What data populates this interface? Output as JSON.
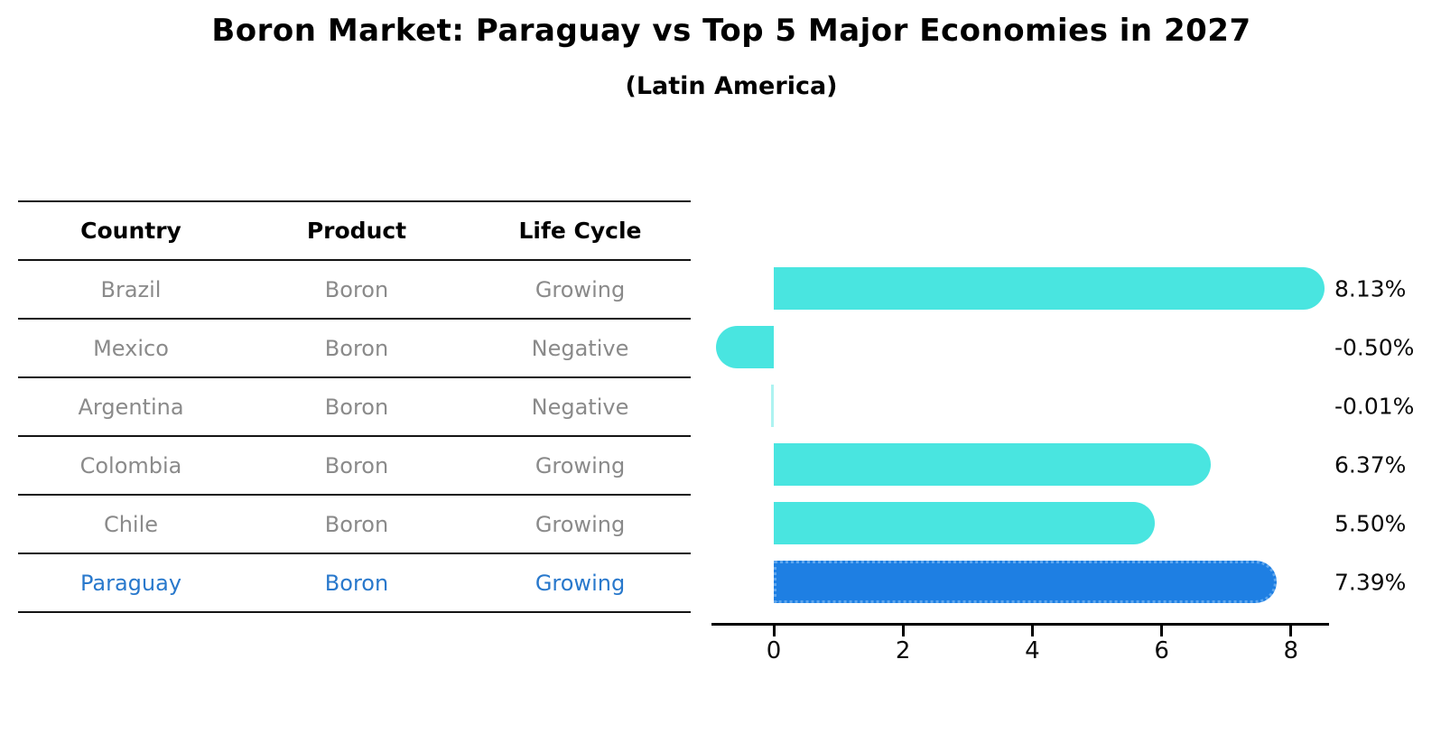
{
  "title": "Boron Market: Paraguay vs Top 5 Major Economies in 2027",
  "subtitle": "(Latin America)",
  "table": {
    "headers": [
      "Country",
      "Product",
      "Life Cycle"
    ],
    "rows": [
      {
        "country": "Brazil",
        "product": "Boron",
        "life_cycle": "Growing",
        "highlight": false
      },
      {
        "country": "Mexico",
        "product": "Boron",
        "life_cycle": "Negative",
        "highlight": false
      },
      {
        "country": "Argentina",
        "product": "Boron",
        "life_cycle": "Negative",
        "highlight": false
      },
      {
        "country": "Colombia",
        "product": "Boron",
        "life_cycle": "Growing",
        "highlight": false
      },
      {
        "country": "Chile",
        "product": "Boron",
        "life_cycle": "Growing",
        "highlight": false
      },
      {
        "country": "Paraguay",
        "product": "Boron",
        "life_cycle": "Growing",
        "highlight": true
      }
    ]
  },
  "chart_data": {
    "type": "bar",
    "orientation": "horizontal",
    "title": "Boron Market: Paraguay vs Top 5 Major Economies in 2027",
    "subtitle": "(Latin America)",
    "categories": [
      "Brazil",
      "Mexico",
      "Argentina",
      "Colombia",
      "Chile",
      "Paraguay"
    ],
    "values": [
      8.13,
      -0.5,
      -0.01,
      6.37,
      5.5,
      7.39
    ],
    "value_labels": [
      "8.13%",
      "-0.50%",
      "-0.01%",
      "6.37%",
      "5.50%",
      "7.39%"
    ],
    "x_ticks": [
      0,
      2,
      4,
      6,
      8
    ],
    "xlim": [
      -0.97,
      8.6
    ],
    "grid": false,
    "legend": "none",
    "bar_color": "#49e5e0",
    "highlight_color": "#1e7fe3",
    "highlight_index": 5
  },
  "colors": {
    "bar": "#49e5e0",
    "highlight_bar": "#1e7fe3",
    "highlight_text": "#2878cc",
    "row_text": "#8a8a8a",
    "axis": "#000000"
  }
}
